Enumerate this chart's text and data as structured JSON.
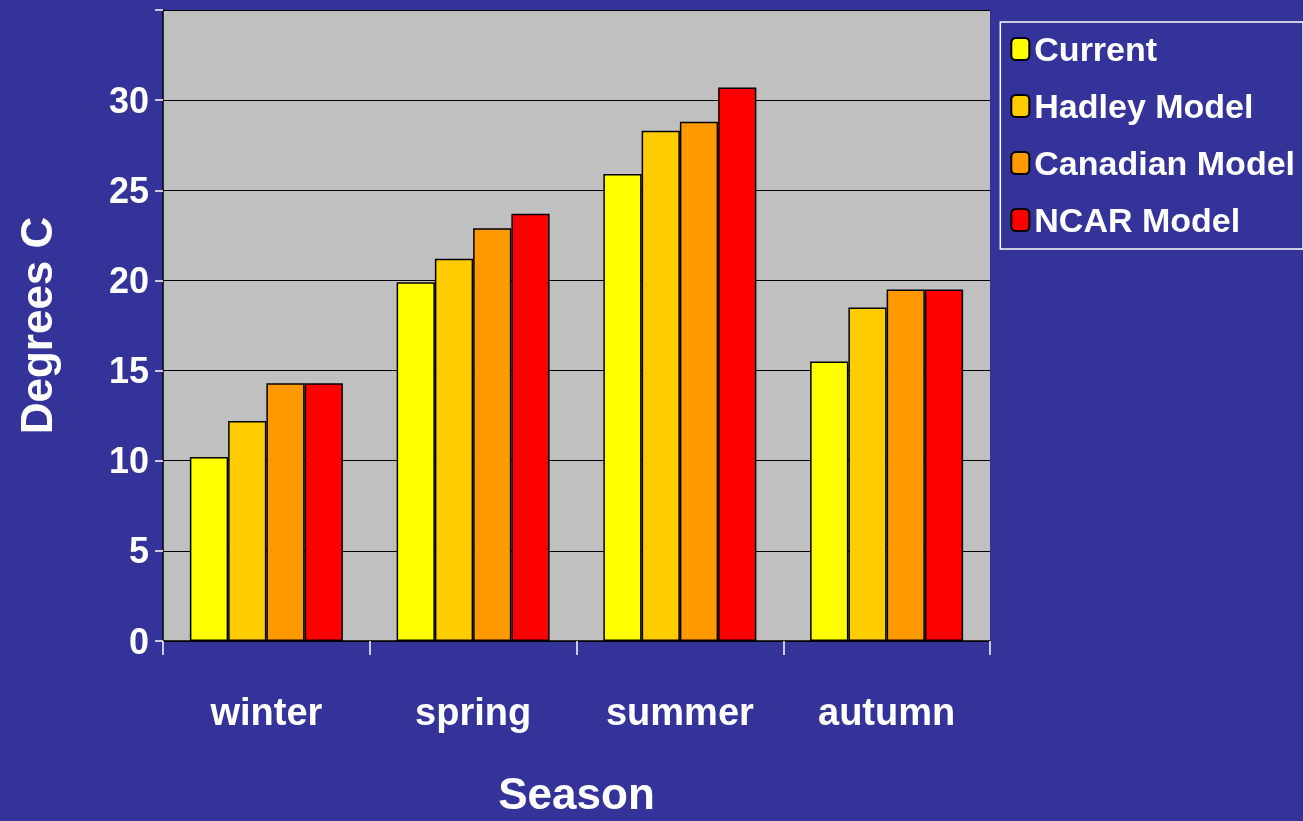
{
  "chart_data": {
    "type": "bar",
    "xlabel": "Season",
    "ylabel": "Degrees C",
    "categories": [
      "winter",
      "spring",
      "summer",
      "autumn"
    ],
    "series": [
      {
        "name": "Current",
        "color": "#ffff00",
        "values": [
          10.2,
          19.9,
          25.9,
          15.5
        ]
      },
      {
        "name": "Hadley Model",
        "color": "#ffcc00",
        "values": [
          12.2,
          21.2,
          28.3,
          18.5
        ]
      },
      {
        "name": "Canadian Model",
        "color": "#ff9900",
        "values": [
          14.3,
          22.9,
          28.8,
          19.5
        ]
      },
      {
        "name": "NCAR Model",
        "color": "#ff0000",
        "values": [
          14.3,
          23.7,
          30.7,
          19.5
        ]
      }
    ],
    "ylim": [
      0,
      35
    ],
    "yticks": [
      0,
      5,
      10,
      15,
      20,
      25,
      30,
      {
        "value": 35,
        "label": null
      }
    ],
    "grid": "y",
    "legend": "top right"
  }
}
